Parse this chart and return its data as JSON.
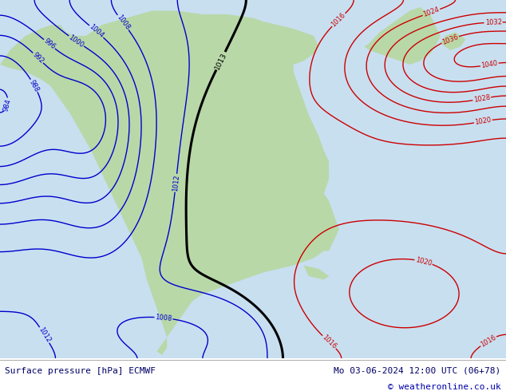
{
  "title_left": "Surface pressure [hPa] ECMWF",
  "title_right": "Mo 03-06-2024 12:00 UTC (06+78)",
  "copyright": "© weatheronline.co.uk",
  "bg_color": "#c8dff0",
  "land_color": "#b8d8a8",
  "footer_text_color": "#000066",
  "figsize": [
    6.34,
    4.9
  ],
  "dpi": 100
}
